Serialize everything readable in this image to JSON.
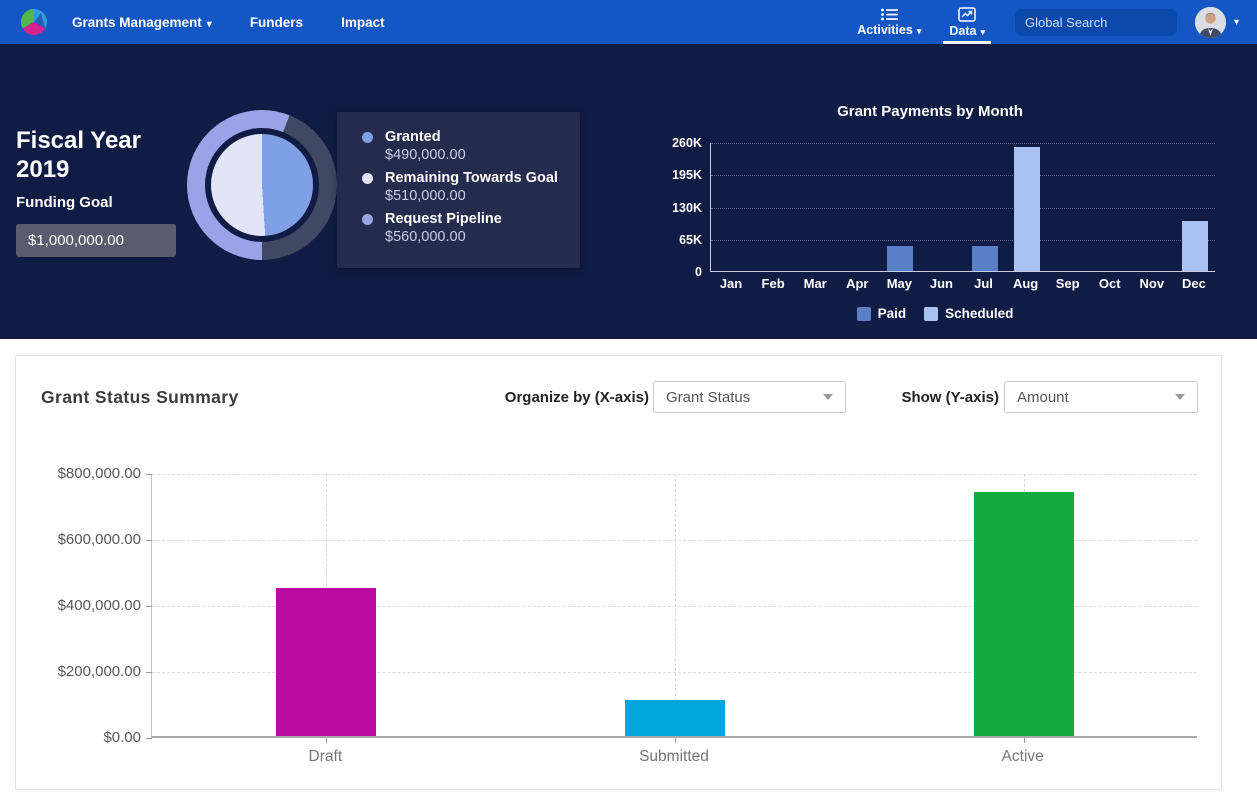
{
  "navbar": {
    "items": [
      {
        "label": "Grants Management",
        "caret": "▾"
      },
      {
        "label": "Funders",
        "caret": ""
      },
      {
        "label": "Impact",
        "caret": ""
      }
    ],
    "activities_label": "Activities",
    "activities_caret": "▾",
    "data_label": "Data",
    "data_caret": "▾",
    "search_placeholder": "Global Search",
    "avatar_caret": "▾"
  },
  "hero": {
    "fiscal_year_title": "Fiscal Year 2019",
    "funding_goal_label": "Funding Goal",
    "funding_goal_value": "$1,000,000.00"
  },
  "chart_data": [
    {
      "name": "funding-goal-donut",
      "type": "pie",
      "goal": 1000000,
      "ring_empty_color": "#414864",
      "legend": [
        {
          "label": "Granted",
          "value": "$490,000.00",
          "amount": 490000,
          "color": "#7fa0e4"
        },
        {
          "label": "Remaining Towards Goal",
          "value": "$510,000.00",
          "amount": 510000,
          "color": "#e2e5f7"
        },
        {
          "label": "Request Pipeline",
          "value": "$560,000.00",
          "amount": 560000,
          "color": "#9aa3e6"
        }
      ]
    },
    {
      "name": "grant-payments-by-month",
      "type": "bar",
      "title": "Grant Payments by Month",
      "categories": [
        "Jan",
        "Feb",
        "Mar",
        "Apr",
        "May",
        "Jun",
        "Jul",
        "Aug",
        "Sep",
        "Oct",
        "Nov",
        "Dec"
      ],
      "series": [
        {
          "name": "Paid",
          "color": "#5b7fc6",
          "values": [
            0,
            0,
            0,
            0,
            50000,
            0,
            50000,
            0,
            0,
            0,
            0,
            0
          ]
        },
        {
          "name": "Scheduled",
          "color": "#a9c2f2",
          "values": [
            0,
            0,
            0,
            0,
            0,
            0,
            0,
            250000,
            0,
            0,
            0,
            100000
          ]
        }
      ],
      "ylim": [
        0,
        260000
      ],
      "yticks": [
        "0",
        "65K",
        "130K",
        "195K",
        "260K"
      ],
      "grid": "dotted horizontal",
      "legend_position": "bottom"
    },
    {
      "name": "grant-status-summary",
      "type": "bar",
      "categories": [
        "Draft",
        "Submitted",
        "Active"
      ],
      "values": [
        450000,
        110000,
        740000
      ],
      "colors": [
        "#b70ba1",
        "#00a8d9",
        "#13aa41"
      ],
      "ylim": [
        0,
        800000
      ],
      "yticks": [
        "$0.00",
        "$200,000.00",
        "$400,000.00",
        "$600,000.00",
        "$800,000.00"
      ],
      "grid": "dashed horizontal and vertical"
    }
  ],
  "summary_card": {
    "title": "Grant Status Summary",
    "organize_label": "Organize by (X-axis)",
    "organize_value": "Grant Status",
    "show_label": "Show (Y-axis)",
    "show_value": "Amount"
  }
}
